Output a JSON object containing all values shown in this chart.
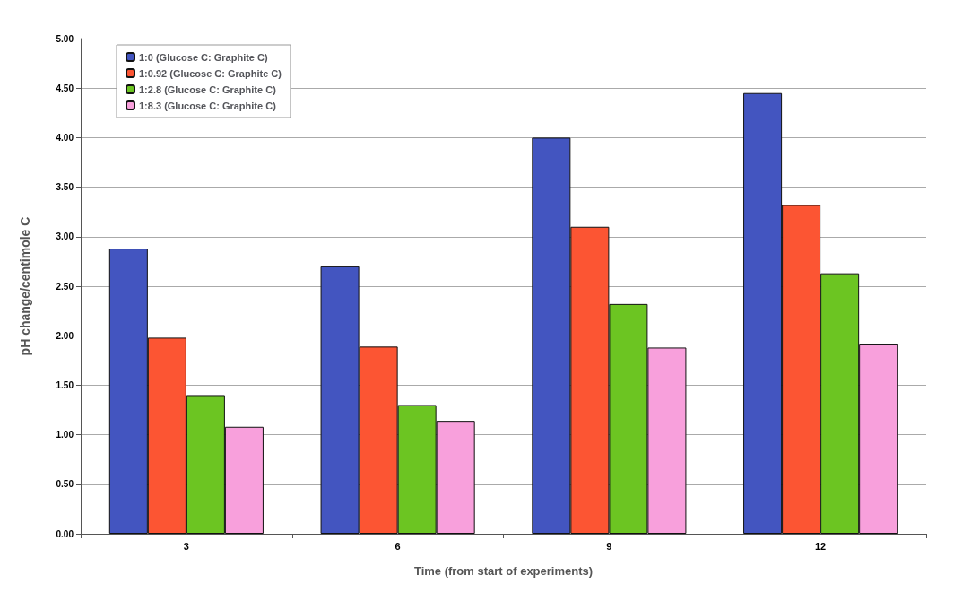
{
  "chart_data": {
    "type": "bar",
    "xlabel": "Time (from start of experiments)",
    "ylabel": "pH change/centimole C",
    "categories": [
      "3",
      "6",
      "9",
      "12"
    ],
    "series": [
      {
        "name": "1:0 (Glucose C: Graphite C)",
        "color": "#4355c0",
        "values": [
          2.88,
          2.7,
          4.0,
          4.45
        ]
      },
      {
        "name": "1:0.92 (Glucose C: Graphite C)",
        "color": "#fc5533",
        "values": [
          1.98,
          1.89,
          3.1,
          3.32
        ]
      },
      {
        "name": "1:2.8 (Glucose C: Graphite C)",
        "color": "#6cc522",
        "values": [
          1.4,
          1.3,
          2.32,
          2.63
        ]
      },
      {
        "name": "1:8.3 (Glucose C: Graphite C)",
        "color": "#f8a0dc",
        "values": [
          1.08,
          1.14,
          1.88,
          1.92
        ]
      }
    ],
    "ylim": [
      0,
      5
    ],
    "yticks": [
      {
        "value": 0,
        "label": "0.00"
      },
      {
        "value": 0.5,
        "label": "0.50"
      },
      {
        "value": 1,
        "label": "1.00"
      },
      {
        "value": 1.5,
        "label": "1.50"
      },
      {
        "value": 2,
        "label": "2.00"
      },
      {
        "value": 2.5,
        "label": "2.50"
      },
      {
        "value": 3,
        "label": "3.00"
      },
      {
        "value": 3.5,
        "label": "3.50"
      },
      {
        "value": 4,
        "label": "4.00"
      },
      {
        "value": 4.5,
        "label": "4.50"
      },
      {
        "value": 5,
        "label": "5.00"
      }
    ],
    "grid": "y",
    "legend": "top left"
  }
}
